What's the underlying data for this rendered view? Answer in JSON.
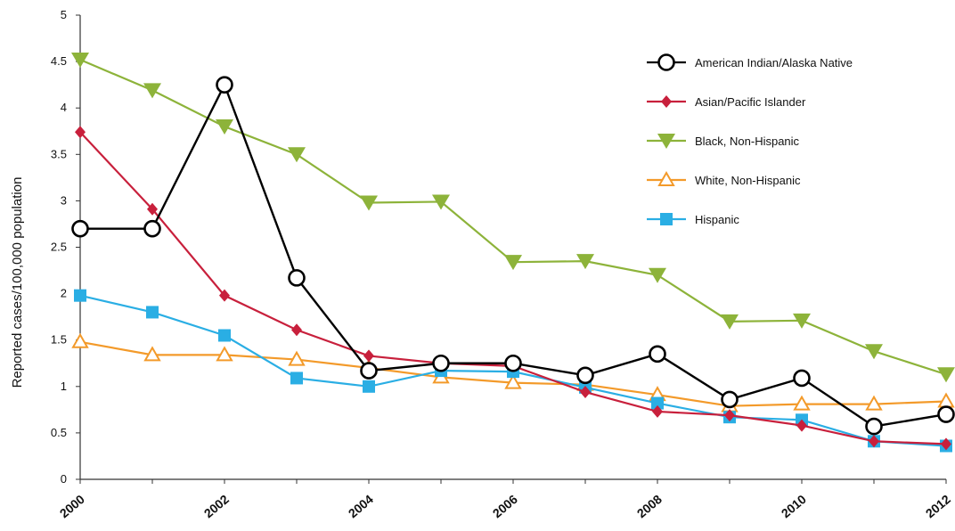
{
  "chart_data": {
    "type": "line",
    "title": "",
    "xlabel": "",
    "ylabel": "Reported cases/100,000 population",
    "ylim": [
      0,
      5
    ],
    "yticks": [
      0,
      0.5,
      1,
      1.5,
      2,
      2.5,
      3,
      3.5,
      4,
      4.5,
      5
    ],
    "ytick_labels": [
      "0",
      "0.5",
      "1",
      "1.5",
      "2",
      "2.5",
      "3",
      "3.5",
      "4",
      "4.5",
      "5"
    ],
    "xlim": [
      2000,
      2012
    ],
    "xticks": [
      2000,
      2002,
      2004,
      2006,
      2008,
      2010,
      2012
    ],
    "xtick_labels": [
      "2000",
      "2002",
      "2004",
      "2006",
      "2008",
      "2010",
      "2012"
    ],
    "x": [
      2000,
      2001,
      2002,
      2003,
      2004,
      2005,
      2006,
      2007,
      2008,
      2009,
      2010,
      2011,
      2012
    ],
    "grid": false,
    "legend_position": "top-right",
    "series": [
      {
        "name": "American  Indian/Alaska Native",
        "color": "#000000",
        "marker": "open-circle",
        "values": [
          2.7,
          2.7,
          4.25,
          2.17,
          1.17,
          1.25,
          1.25,
          1.12,
          1.35,
          0.86,
          1.09,
          0.57,
          0.7
        ]
      },
      {
        "name": "Asian/Pacific Islander",
        "color": "#c8203c",
        "marker": "diamond",
        "values": [
          3.74,
          2.91,
          1.98,
          1.61,
          1.33,
          1.25,
          1.22,
          0.94,
          0.73,
          0.69,
          0.58,
          0.41,
          0.38
        ]
      },
      {
        "name": "Black, Non-Hispanic",
        "color": "#8db33a",
        "marker": "down-triangle",
        "values": [
          4.52,
          4.19,
          3.8,
          3.5,
          2.98,
          2.99,
          2.34,
          2.35,
          2.2,
          1.7,
          1.71,
          1.38,
          1.13
        ]
      },
      {
        "name": "White, Non-Hispanic",
        "color": "#f39a2a",
        "marker": "open-triangle",
        "values": [
          1.48,
          1.34,
          1.34,
          1.29,
          1.2,
          1.1,
          1.04,
          1.02,
          0.91,
          0.79,
          0.81,
          0.81,
          0.84
        ]
      },
      {
        "name": "Hispanic",
        "color": "#2aaee4",
        "marker": "square",
        "values": [
          1.98,
          1.8,
          1.55,
          1.09,
          1.0,
          1.17,
          1.16,
          0.99,
          0.82,
          0.67,
          0.64,
          0.41,
          0.36
        ]
      }
    ]
  }
}
